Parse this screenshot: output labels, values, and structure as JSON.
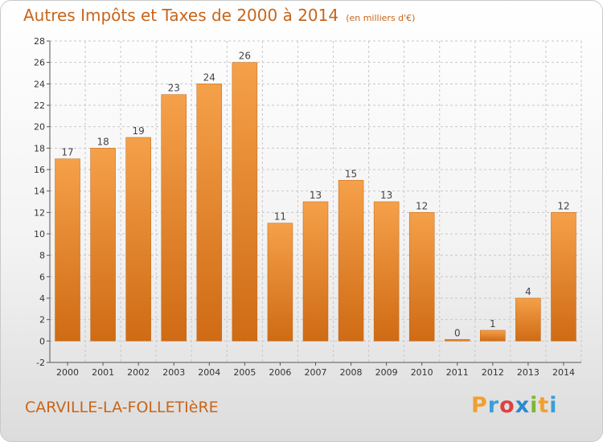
{
  "title": "Autres Impôts et Taxes de 2000 à 2014",
  "unit": "(en milliers d'€)",
  "commune": "CARVILLE-LA-FOLLETIèRE",
  "logo": {
    "letters": [
      "P",
      "r",
      "o",
      "x",
      "i",
      "t",
      "i"
    ],
    "colors": [
      "#f0a030",
      "#3a9fd8",
      "#e04040",
      "#2a8ad0",
      "#7cb832",
      "#f0a030",
      "#3a9fd8"
    ]
  },
  "colors": {
    "bar": "#e8872e",
    "title": "#c8651a",
    "grid": "#c8c8c8"
  },
  "chart_data": {
    "type": "bar",
    "categories": [
      "2000",
      "2001",
      "2002",
      "2003",
      "2004",
      "2005",
      "2006",
      "2007",
      "2008",
      "2009",
      "2010",
      "2011",
      "2012",
      "2013",
      "2014"
    ],
    "values": [
      17,
      18,
      19,
      23,
      24,
      26,
      11,
      13,
      15,
      13,
      12,
      0,
      1,
      4,
      12
    ],
    "ylim": [
      -2,
      28
    ],
    "yticks": [
      -2,
      0,
      2,
      4,
      6,
      8,
      10,
      12,
      14,
      16,
      18,
      20,
      22,
      24,
      26,
      28
    ],
    "grid": true
  }
}
